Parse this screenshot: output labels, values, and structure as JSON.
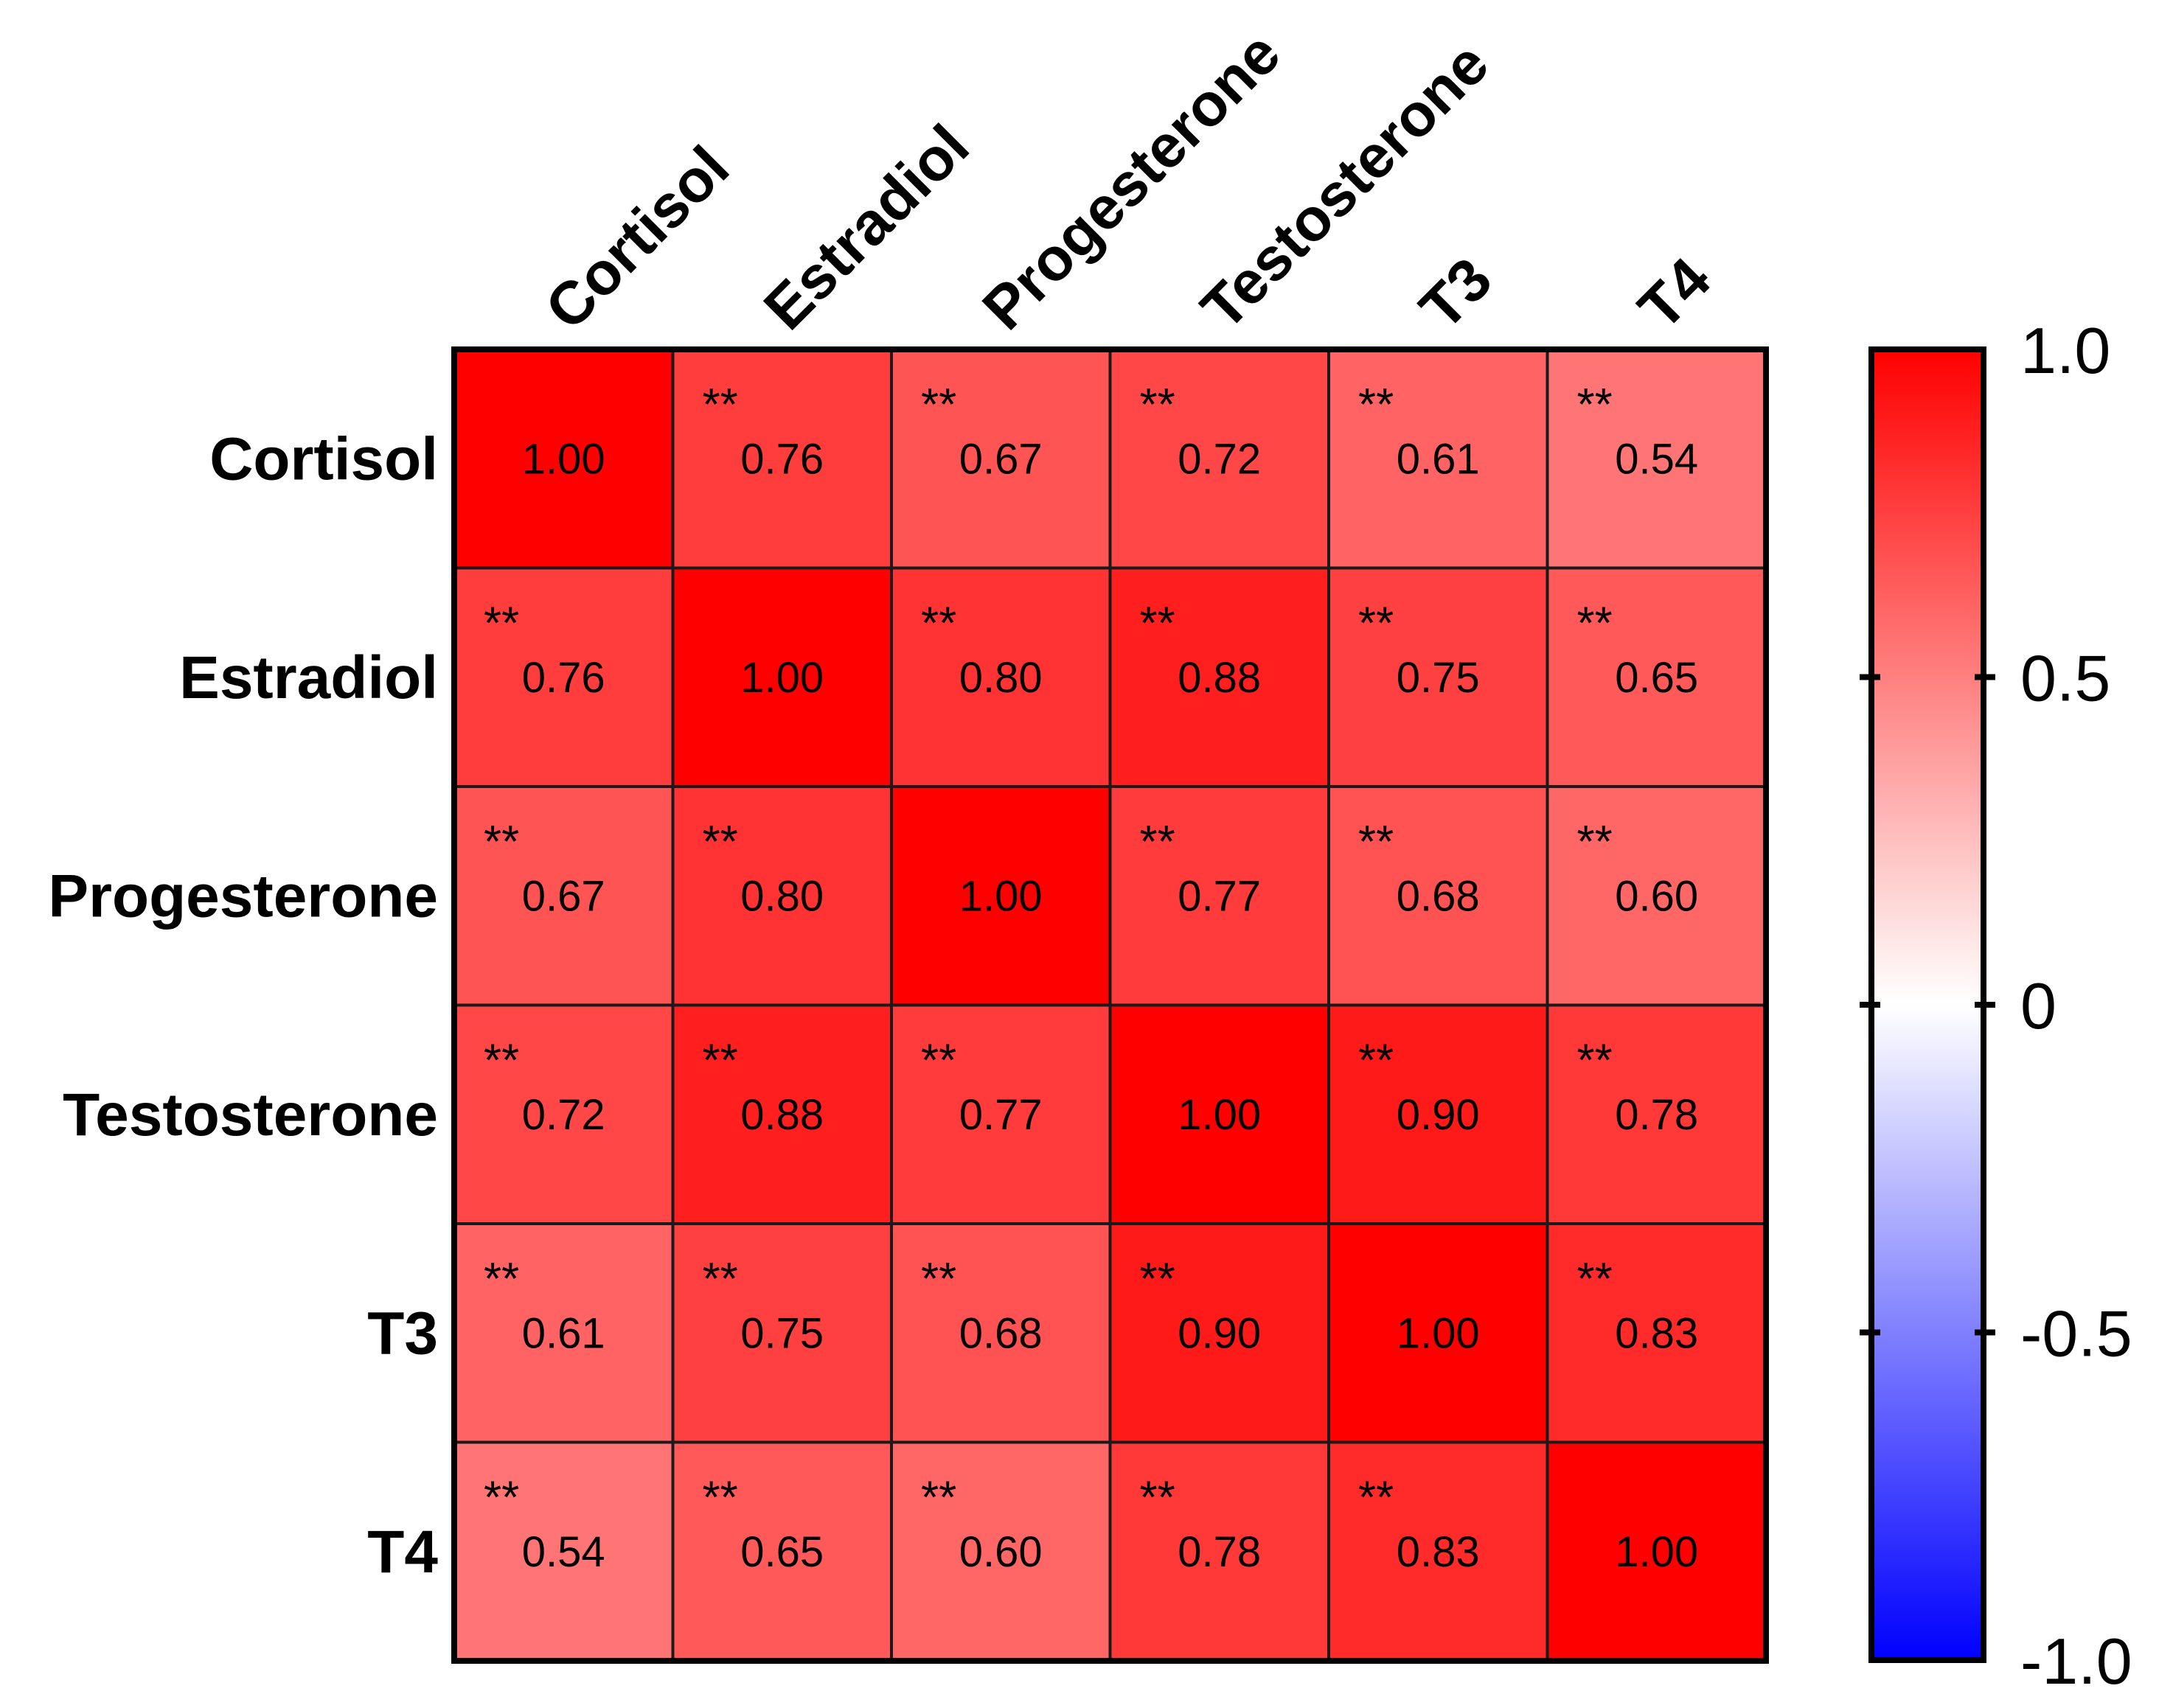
{
  "chart_data": {
    "type": "heatmap",
    "row_labels": [
      "Cortisol",
      "Estradiol",
      "Progesterone",
      "Testosterone",
      "T3",
      "T4"
    ],
    "col_labels": [
      "Cortisol",
      "Estradiol",
      "Progesterone",
      "Testosterone",
      "T3",
      "T4"
    ],
    "values": [
      [
        1.0,
        0.76,
        0.67,
        0.72,
        0.61,
        0.54
      ],
      [
        0.76,
        1.0,
        0.8,
        0.88,
        0.75,
        0.65
      ],
      [
        0.67,
        0.8,
        1.0,
        0.77,
        0.68,
        0.6
      ],
      [
        0.72,
        0.88,
        0.77,
        1.0,
        0.9,
        0.78
      ],
      [
        0.61,
        0.75,
        0.68,
        0.9,
        1.0,
        0.83
      ],
      [
        0.54,
        0.65,
        0.6,
        0.78,
        0.83,
        1.0
      ]
    ],
    "value_labels": [
      [
        "1.00",
        "0.76",
        "0.67",
        "0.72",
        "0.61",
        "0.54"
      ],
      [
        "0.76",
        "1.00",
        "0.80",
        "0.88",
        "0.75",
        "0.65"
      ],
      [
        "0.67",
        "0.80",
        "1.00",
        "0.77",
        "0.68",
        "0.60"
      ],
      [
        "0.72",
        "0.88",
        "0.77",
        "1.00",
        "0.90",
        "0.78"
      ],
      [
        "0.61",
        "0.75",
        "0.68",
        "0.90",
        "1.00",
        "0.83"
      ],
      [
        "0.54",
        "0.65",
        "0.60",
        "0.78",
        "0.83",
        "1.00"
      ]
    ],
    "significance": [
      [
        "",
        "**",
        "**",
        "**",
        "**",
        "**"
      ],
      [
        "**",
        "",
        "**",
        "**",
        "**",
        "**"
      ],
      [
        "**",
        "**",
        "",
        "**",
        "**",
        "**"
      ],
      [
        "**",
        "**",
        "**",
        "",
        "**",
        "**"
      ],
      [
        "**",
        "**",
        "**",
        "**",
        "",
        "**"
      ],
      [
        "**",
        "**",
        "**",
        "**",
        "**",
        ""
      ]
    ],
    "colorbar": {
      "range": [
        -1.0,
        1.0
      ],
      "ticks": [
        1.0,
        0.5,
        0,
        -0.5,
        -1.0
      ],
      "tick_labels": [
        "1.0",
        "0.5",
        "0",
        "-0.5",
        "-1.0"
      ],
      "colors": {
        "low": "#0000ff",
        "mid": "#ffffff",
        "high": "#ff0000"
      }
    },
    "legend_placement": "right",
    "grid": true
  }
}
